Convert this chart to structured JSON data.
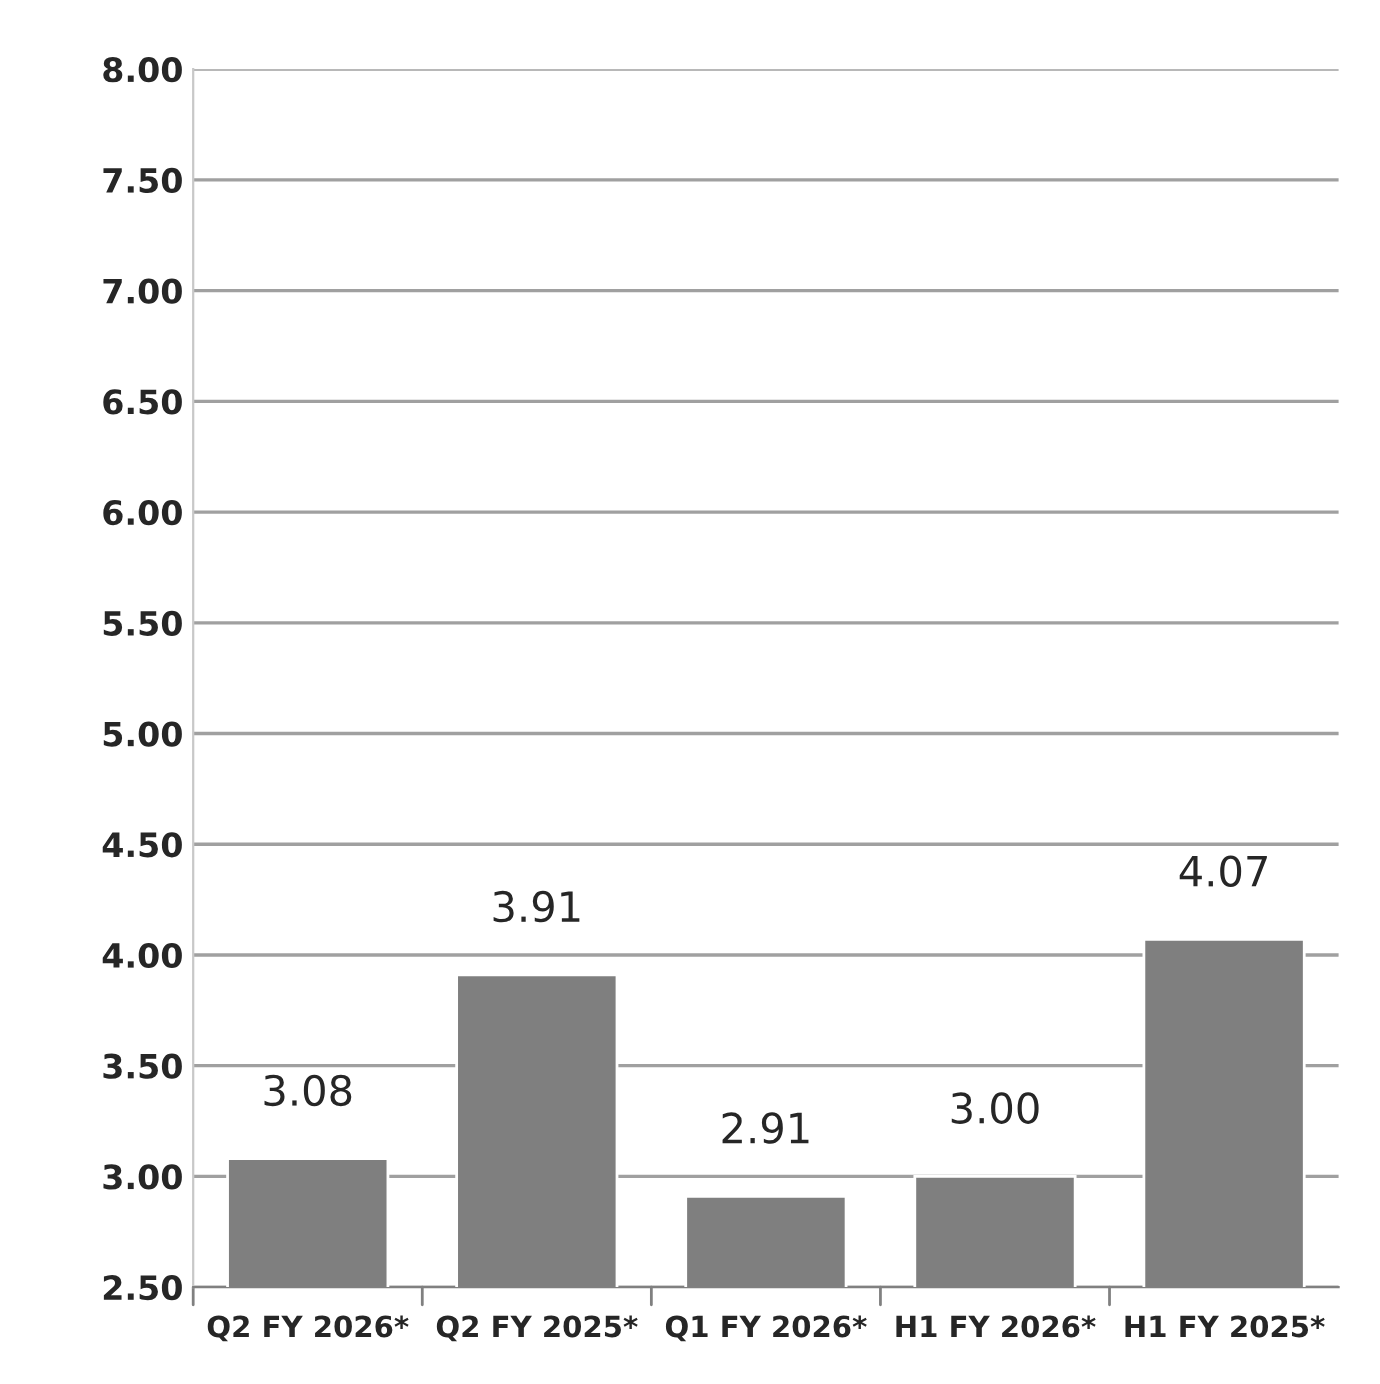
{
  "chart_data": {
    "type": "bar",
    "categories": [
      "Q2 FY 2026*",
      "Q2 FY 2025*",
      "Q1 FY 2026*",
      "H1 FY 2026*",
      "H1 FY 2025*"
    ],
    "values": [
      3.08,
      3.91,
      2.91,
      3.0,
      4.07
    ],
    "value_labels": [
      "3.08",
      "3.91",
      "2.91",
      "3.00",
      "4.07"
    ],
    "color": "#7f7f7f",
    "ylim": [
      2.5,
      8.0
    ],
    "yticks": [
      {
        "value": 2.5,
        "label": "2.50"
      },
      {
        "value": 3.0,
        "label": "3.00"
      },
      {
        "value": 3.5,
        "label": "3.50"
      },
      {
        "value": 4.0,
        "label": "4.00"
      },
      {
        "value": 4.5,
        "label": "4.50"
      },
      {
        "value": 5.0,
        "label": "5.00"
      },
      {
        "value": 5.5,
        "label": "5.50"
      },
      {
        "value": 6.0,
        "label": "6.00"
      },
      {
        "value": 6.5,
        "label": "6.50"
      },
      {
        "value": 7.0,
        "label": "7.00"
      },
      {
        "value": 7.5,
        "label": "7.50"
      },
      {
        "value": 8.0,
        "label": "8.00"
      }
    ],
    "grid": "y"
  }
}
